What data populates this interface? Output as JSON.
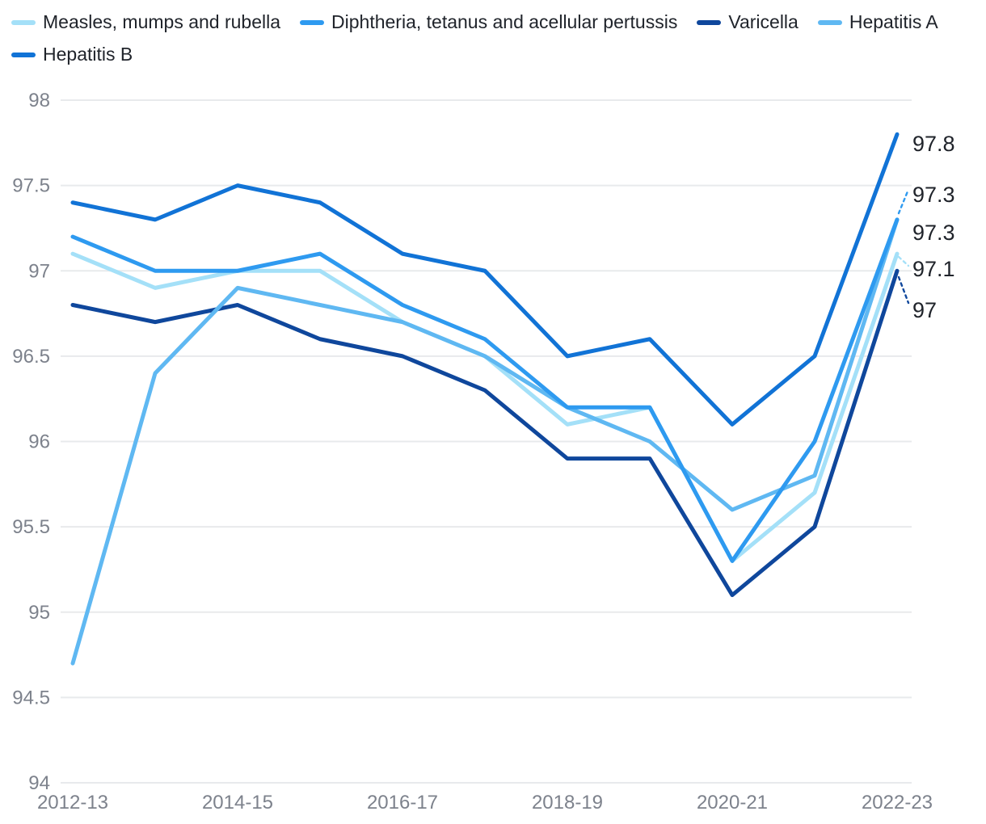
{
  "chart_data": {
    "type": "line",
    "categories": [
      "2012-13",
      "2013-14",
      "2014-15",
      "2015-16",
      "2016-17",
      "2017-18",
      "2018-19",
      "2019-20",
      "2020-21",
      "2021-22",
      "2022-23"
    ],
    "x_tick_labels": [
      "2012-13",
      "2014-15",
      "2016-17",
      "2018-19",
      "2020-21",
      "2022-23"
    ],
    "y_axis": {
      "min": 94,
      "max": 98,
      "step": 0.5,
      "tick_labels": [
        "94",
        "94.5",
        "95",
        "95.5",
        "96",
        "96.5",
        "97",
        "97.5",
        "98"
      ]
    },
    "grid": "horizontal",
    "legend_position": "top",
    "series": [
      {
        "name": "Measles, mumps and rubella",
        "color": "#a4e0f8",
        "end_label": "97.1",
        "values": [
          97.1,
          96.9,
          97.0,
          97.0,
          96.7,
          96.5,
          96.1,
          96.2,
          95.3,
          95.7,
          97.1
        ]
      },
      {
        "name": "Diphtheria, tetanus and acellular pertussis",
        "color": "#2e9af0",
        "end_label": "97.3",
        "values": [
          97.2,
          97.0,
          97.0,
          97.1,
          96.8,
          96.6,
          96.2,
          96.2,
          95.3,
          96.0,
          97.3
        ]
      },
      {
        "name": "Varicella",
        "color": "#0f479c",
        "end_label": "97",
        "values": [
          96.8,
          96.7,
          96.8,
          96.6,
          96.5,
          96.3,
          95.9,
          95.9,
          95.1,
          95.5,
          97.0
        ]
      },
      {
        "name": "Hepatitis A",
        "color": "#5fb8f2",
        "end_label": "97.3",
        "values": [
          94.7,
          96.4,
          96.9,
          96.8,
          96.7,
          96.5,
          96.2,
          96.0,
          95.6,
          95.8,
          97.3
        ]
      },
      {
        "name": "Hepatitis B",
        "color": "#1173d6",
        "end_label": "97.8",
        "values": [
          97.4,
          97.3,
          97.5,
          97.4,
          97.1,
          97.0,
          96.5,
          96.6,
          96.1,
          96.5,
          97.8
        ]
      }
    ],
    "colors": {
      "grid": "#e8eaec",
      "axis_text": "#7d828c",
      "label_text": "#20242b",
      "background": "#ffffff"
    }
  }
}
